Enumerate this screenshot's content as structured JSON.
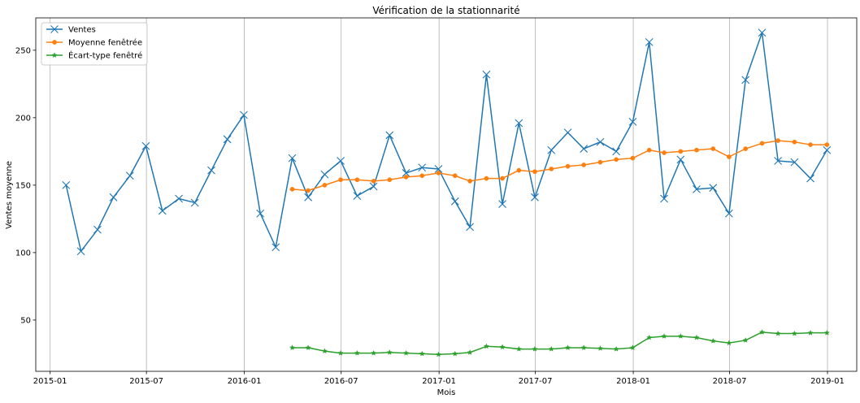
{
  "chart_data": {
    "type": "line",
    "title": "Vérification de la stationnarité",
    "xlabel": "Mois",
    "ylabel": "Ventes moyenne",
    "xlim": [
      "2014-12-05",
      "2019-02-25"
    ],
    "ylim": [
      12,
      274
    ],
    "grid": "x-only",
    "legend_position": "upper-left",
    "x_ticks": [
      {
        "date": "2015-01-01",
        "label": "2015-01"
      },
      {
        "date": "2015-07-01",
        "label": "2015-07"
      },
      {
        "date": "2016-01-01",
        "label": "2016-01"
      },
      {
        "date": "2016-07-01",
        "label": "2016-07"
      },
      {
        "date": "2017-01-01",
        "label": "2017-01"
      },
      {
        "date": "2017-07-01",
        "label": "2017-07"
      },
      {
        "date": "2018-01-01",
        "label": "2018-01"
      },
      {
        "date": "2018-07-01",
        "label": "2018-07"
      },
      {
        "date": "2019-01-01",
        "label": "2019-01"
      }
    ],
    "y_ticks": [
      {
        "value": 50,
        "label": "50"
      },
      {
        "value": 100,
        "label": "100"
      },
      {
        "value": 150,
        "label": "150"
      },
      {
        "value": 200,
        "label": "200"
      },
      {
        "value": 250,
        "label": "250"
      }
    ],
    "series": [
      {
        "name": "Ventes",
        "color": "#1f77b4",
        "marker": "x",
        "x": [
          "2015-01-31",
          "2015-02-28",
          "2015-03-31",
          "2015-04-30",
          "2015-05-31",
          "2015-06-30",
          "2015-07-31",
          "2015-08-31",
          "2015-09-30",
          "2015-10-31",
          "2015-11-30",
          "2015-12-31",
          "2016-01-31",
          "2016-02-29",
          "2016-03-31",
          "2016-04-30",
          "2016-05-31",
          "2016-06-30",
          "2016-07-31",
          "2016-08-31",
          "2016-09-30",
          "2016-10-31",
          "2016-11-30",
          "2016-12-31",
          "2017-01-31",
          "2017-02-28",
          "2017-03-31",
          "2017-04-30",
          "2017-05-31",
          "2017-06-30",
          "2017-07-31",
          "2017-08-31",
          "2017-09-30",
          "2017-10-31",
          "2017-11-30",
          "2017-12-31",
          "2018-01-31",
          "2018-02-28",
          "2018-03-31",
          "2018-04-30",
          "2018-05-31",
          "2018-06-30",
          "2018-07-31",
          "2018-08-31",
          "2018-09-30",
          "2018-10-31",
          "2018-11-30",
          "2018-12-31"
        ],
        "values": [
          150,
          101,
          117,
          141,
          157,
          179,
          131,
          140,
          137,
          161,
          184,
          202,
          129,
          104,
          170,
          141,
          158,
          168,
          142,
          149,
          187,
          159,
          163,
          162,
          138,
          119,
          232,
          136,
          196,
          141,
          176,
          189,
          177,
          182,
          175,
          197,
          256,
          140,
          169,
          147,
          148,
          129,
          228,
          263,
          168,
          167,
          155,
          176
        ]
      },
      {
        "name": "Moyenne fenêtrée",
        "color": "#ff7f0e",
        "marker": "o",
        "x": [
          "2016-03-31",
          "2016-04-30",
          "2016-05-31",
          "2016-06-30",
          "2016-07-31",
          "2016-08-31",
          "2016-09-30",
          "2016-10-31",
          "2016-11-30",
          "2016-12-31",
          "2017-01-31",
          "2017-02-28",
          "2017-03-31",
          "2017-04-30",
          "2017-05-31",
          "2017-06-30",
          "2017-07-31",
          "2017-08-31",
          "2017-09-30",
          "2017-10-31",
          "2017-11-30",
          "2017-12-31",
          "2018-01-31",
          "2018-02-28",
          "2018-03-31",
          "2018-04-30",
          "2018-05-31",
          "2018-06-30",
          "2018-07-31",
          "2018-08-31",
          "2018-09-30",
          "2018-10-31",
          "2018-11-30",
          "2018-12-31"
        ],
        "values": [
          147,
          146,
          150,
          154,
          154,
          153,
          154,
          156,
          157,
          159,
          157,
          153,
          155,
          155,
          161,
          160,
          162,
          164,
          165,
          167,
          169,
          170,
          176,
          174,
          175,
          176,
          177,
          171,
          177,
          181,
          183,
          182,
          180,
          180
        ]
      },
      {
        "name": "Écart-type fenêtré",
        "color": "#2ca02c",
        "marker": "*",
        "x": [
          "2016-03-31",
          "2016-04-30",
          "2016-05-31",
          "2016-06-30",
          "2016-07-31",
          "2016-08-31",
          "2016-09-30",
          "2016-10-31",
          "2016-11-30",
          "2016-12-31",
          "2017-01-31",
          "2017-02-28",
          "2017-03-31",
          "2017-04-30",
          "2017-05-31",
          "2017-06-30",
          "2017-07-31",
          "2017-08-31",
          "2017-09-30",
          "2017-10-31",
          "2017-11-30",
          "2017-12-31",
          "2018-01-31",
          "2018-02-28",
          "2018-03-31",
          "2018-04-30",
          "2018-05-31",
          "2018-06-30",
          "2018-07-31",
          "2018-08-31",
          "2018-09-30",
          "2018-10-31",
          "2018-11-30",
          "2018-12-31"
        ],
        "values": [
          29.5,
          29.5,
          27,
          25.5,
          25.5,
          25.5,
          26,
          25.5,
          25,
          24.5,
          25,
          26,
          30.5,
          30,
          28.5,
          28.5,
          28.5,
          29.5,
          29.5,
          29,
          28.5,
          29.5,
          37,
          38,
          38,
          37,
          34.5,
          33,
          35,
          41,
          40,
          40,
          40.5,
          40.5
        ]
      }
    ]
  }
}
